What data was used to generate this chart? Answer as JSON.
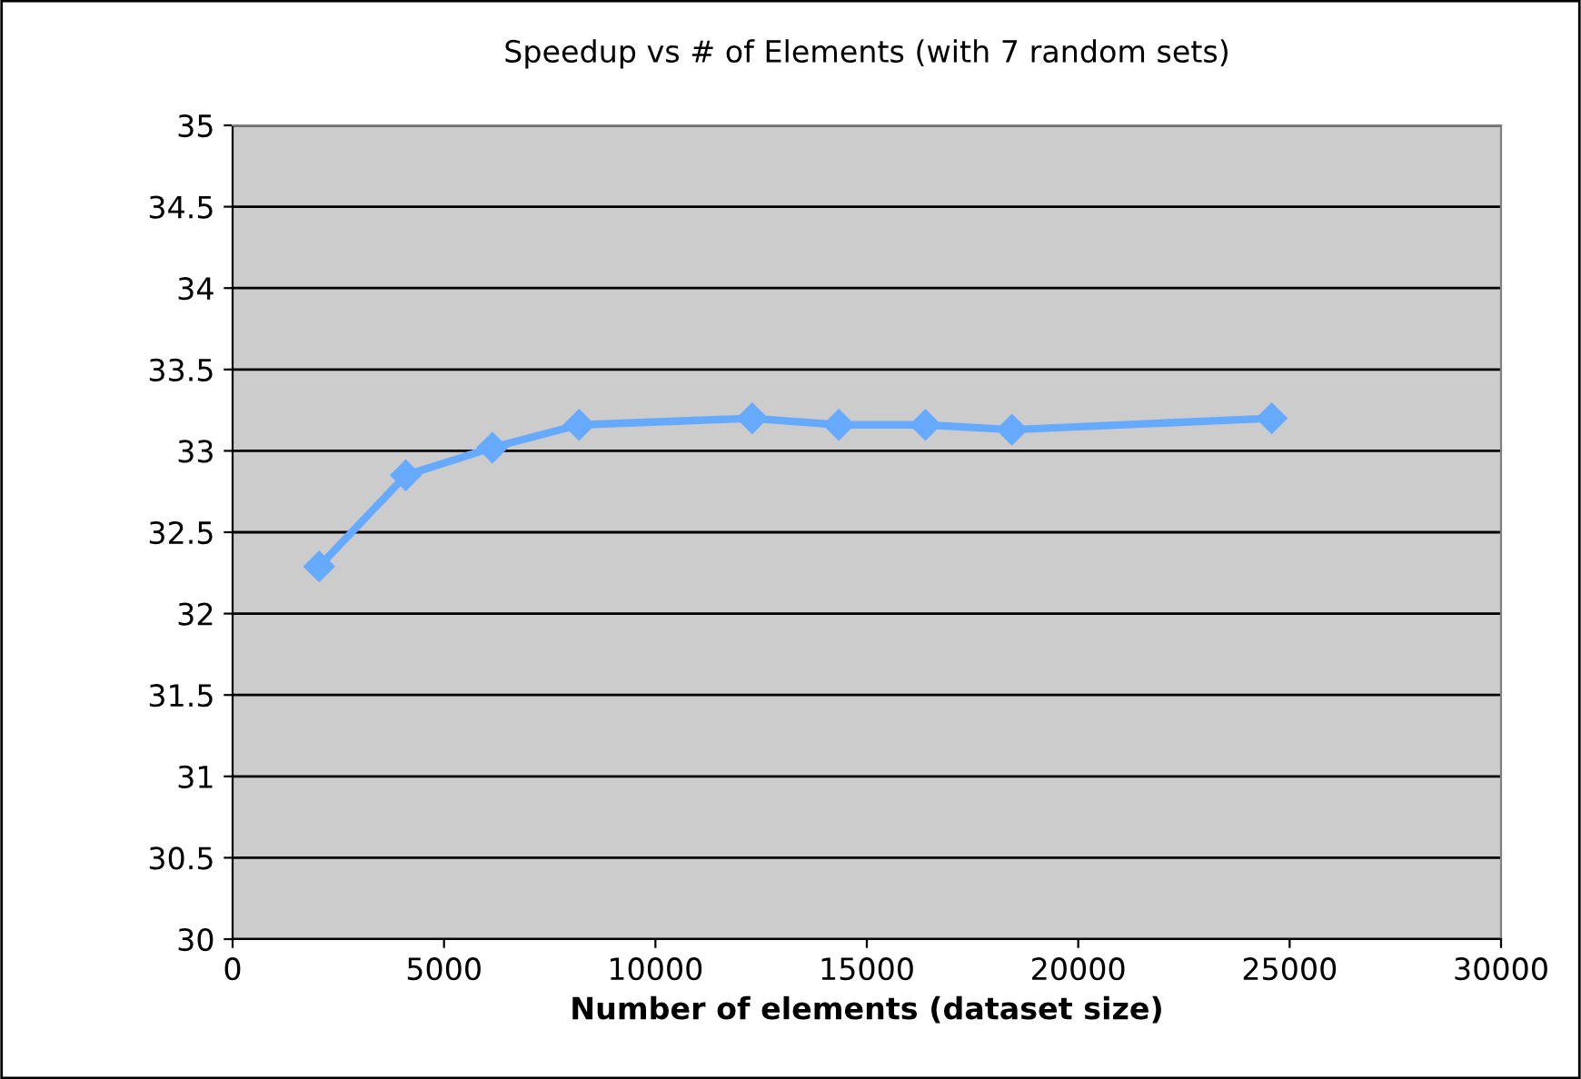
{
  "chart_data": {
    "type": "line",
    "title": "Speedup vs # of Elements (with 7 random sets)",
    "xlabel": "Number of elements (dataset size)",
    "x": [
      2048,
      4096,
      6144,
      8192,
      12288,
      14336,
      16384,
      18432,
      24576
    ],
    "series": [
      {
        "color": "#66aaff",
        "values": [
          32.29,
          32.85,
          33.02,
          33.16,
          33.2,
          33.16,
          33.16,
          33.13,
          33.2
        ]
      }
    ],
    "xlim": [
      0,
      30000
    ],
    "xticks": [
      0,
      5000,
      10000,
      15000,
      20000,
      25000,
      30000
    ],
    "ylim": [
      30,
      35
    ],
    "yticks": [
      30,
      30.5,
      31,
      31.5,
      32,
      32.5,
      33,
      33.5,
      34,
      34.5,
      35
    ],
    "grid": "y",
    "marker": "diamond",
    "line_style": "solid",
    "legend": false
  }
}
